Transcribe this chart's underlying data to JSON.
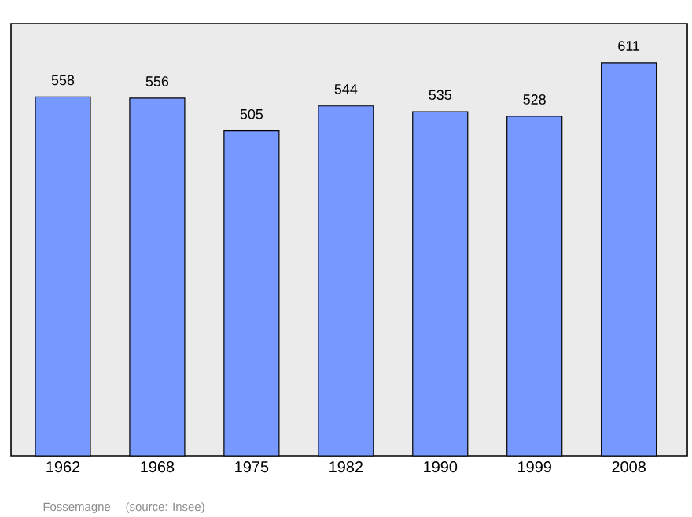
{
  "chart_data": {
    "type": "bar",
    "categories": [
      "1962",
      "1968",
      "1975",
      "1982",
      "1990",
      "1999",
      "2008"
    ],
    "values": [
      558,
      556,
      505,
      544,
      535,
      528,
      611
    ],
    "color": "#7799ff",
    "ylim": [
      0,
      672
    ],
    "data_labels": true,
    "annotations": [
      "Fossemagne",
      "(source: Insee)"
    ]
  }
}
